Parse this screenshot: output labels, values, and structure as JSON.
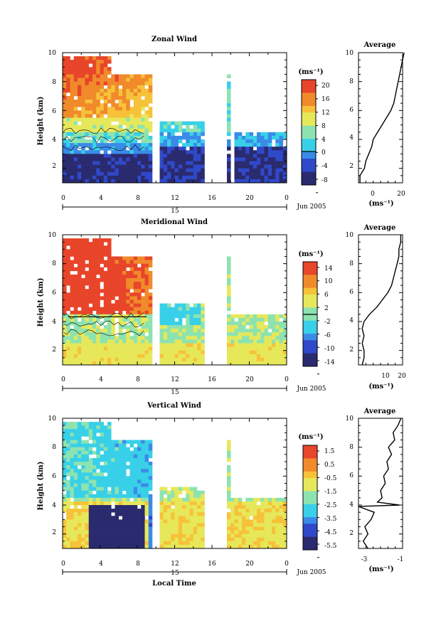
{
  "panels": [
    {
      "title": "Zonal Wind",
      "ylabel": "Height (km)",
      "yticks": [
        "2",
        "4",
        "6",
        "8",
        "10"
      ],
      "xticks": [
        "0",
        "4",
        "8",
        "12",
        "16",
        "20",
        "0"
      ],
      "day_label": "15",
      "month_label": "Jun 2005",
      "cbar_unit": "(ms⁻¹)",
      "cbar_labels": [
        "20",
        "16",
        "12",
        "8",
        "4",
        "0",
        "-4",
        "-8"
      ],
      "avg_title": "Average",
      "avg_xticks": [
        "0",
        "20"
      ],
      "avg_yticks": [
        "2",
        "4",
        "6",
        "8",
        "10"
      ],
      "avg_unit": "(ms⁻¹)"
    },
    {
      "title": "Meridional Wind",
      "ylabel": "Height (km)",
      "yticks": [
        "2",
        "4",
        "6",
        "8",
        "10"
      ],
      "xticks": [
        "0",
        "4",
        "8",
        "12",
        "16",
        "20",
        "0"
      ],
      "day_label": "15",
      "month_label": "Jun 2005",
      "cbar_unit": "(ms⁻¹)",
      "cbar_labels": [
        "14",
        "10",
        "6",
        "2",
        "-2",
        "-6",
        "-10",
        "-14"
      ],
      "avg_title": "Average",
      "avg_xticks": [
        "10",
        "20"
      ],
      "avg_yticks": [
        "2",
        "4",
        "6",
        "8",
        "10"
      ],
      "avg_unit": "(ms⁻¹)"
    },
    {
      "title": "Vertical Wind",
      "ylabel": "Height (km)",
      "yticks": [
        "2",
        "4",
        "6",
        "8",
        "10"
      ],
      "xticks": [
        "0",
        "4",
        "8",
        "12",
        "16",
        "20",
        "0"
      ],
      "day_label": "15",
      "month_label": "Jun 2005",
      "cbar_unit": "(ms⁻¹)",
      "cbar_labels": [
        "1.5",
        "0.5",
        "-0.5",
        "-1.5",
        "-2.5",
        "-3.5",
        "-4.5",
        "-5.5"
      ],
      "avg_title": "Average",
      "avg_xticks": [
        "-3",
        "-1"
      ],
      "avg_yticks": [
        "2",
        "4",
        "6",
        "8",
        "10"
      ],
      "avg_unit": "(ms⁻¹)"
    }
  ],
  "xlabel": "Local Time",
  "colors": {
    "scale": [
      "#2a2a6e",
      "#2f49c9",
      "#3a8be8",
      "#38d0e8",
      "#8de3b0",
      "#e6e85a",
      "#f7c23a",
      "#f08a2a",
      "#e8452a"
    ]
  },
  "chart_data": [
    {
      "type": "heatmap",
      "title": "Zonal Wind",
      "ylabel": "Height (km)",
      "xrange_hours": [
        0,
        24
      ],
      "yrange_km": [
        1,
        10
      ],
      "colorbar_range": [
        -10,
        22
      ],
      "average_profile": {
        "xrange": [
          -10,
          20
        ],
        "height_km": [
          1,
          1.5,
          2,
          2.5,
          3,
          3.5,
          4,
          4.5,
          5,
          5.5,
          6,
          6.5,
          7,
          7.5,
          8,
          8.5,
          9,
          9.5,
          10
        ],
        "value": [
          -9,
          -9,
          -6,
          -5,
          -3,
          -1,
          0,
          3,
          6,
          9,
          12,
          14,
          15,
          16,
          17,
          18,
          19,
          20,
          21
        ]
      }
    },
    {
      "type": "heatmap",
      "title": "Meridional Wind",
      "ylabel": "Height (km)",
      "xrange_hours": [
        0,
        24
      ],
      "yrange_km": [
        1,
        10
      ],
      "colorbar_range": [
        -15,
        16
      ],
      "average_profile": {
        "xrange": [
          -2,
          22
        ],
        "height_km": [
          1,
          1.5,
          2,
          2.5,
          3,
          3.5,
          4,
          4.5,
          5,
          5.5,
          6,
          6.5,
          7,
          7.5,
          8,
          8.5,
          9,
          9.5,
          10
        ],
        "value": [
          0,
          1,
          1,
          0,
          1,
          0,
          1,
          4,
          8,
          11,
          14,
          16,
          17,
          18,
          19,
          20,
          20,
          21,
          21
        ]
      }
    },
    {
      "type": "heatmap",
      "title": "Vertical Wind",
      "ylabel": "Height (km)",
      "xrange_hours": [
        0,
        24
      ],
      "yrange_km": [
        1,
        10
      ],
      "colorbar_range": [
        -6.5,
        2.5
      ],
      "average_profile": {
        "xrange": [
          -3.6,
          -0.8
        ],
        "height_km": [
          1,
          1.5,
          2,
          2.5,
          3,
          3.5,
          3.9,
          4.0,
          4.2,
          4.5,
          5,
          5.5,
          6,
          6.5,
          7,
          7.5,
          8,
          8.5,
          9,
          9.5,
          10
        ],
        "value": [
          -3.0,
          -3.3,
          -3.0,
          -3.2,
          -2.8,
          -2.6,
          -3.6,
          -1.0,
          -2.4,
          -2.1,
          -2.2,
          -1.9,
          -2.0,
          -1.7,
          -1.8,
          -1.5,
          -1.7,
          -1.3,
          -1.4,
          -1.1,
          -0.9
        ]
      }
    }
  ]
}
